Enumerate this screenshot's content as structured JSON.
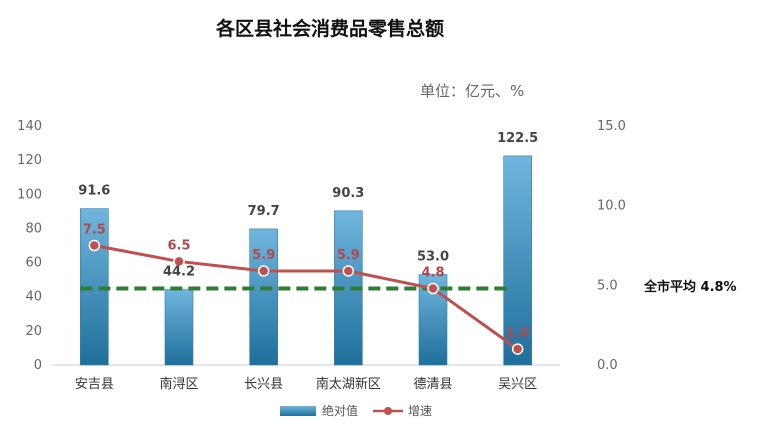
{
  "chart_data": {
    "type": "bar",
    "title": "各区县社会消费品零售总额",
    "unit_label": "单位：亿元、%",
    "categories": [
      "安吉县",
      "南浔区",
      "长兴县",
      "南太湖新区",
      "德清县",
      "吴兴区"
    ],
    "series": [
      {
        "name": "绝对值",
        "type": "bar",
        "axis": "left",
        "values": [
          91.6,
          44.2,
          79.7,
          90.3,
          53.0,
          122.5
        ],
        "color": "#4a9cc8"
      },
      {
        "name": "增速",
        "type": "line",
        "axis": "right",
        "values": [
          7.5,
          6.5,
          5.9,
          5.9,
          4.8,
          1.0
        ],
        "color": "#c0504d"
      }
    ],
    "value_labels": [
      "91.6",
      "44.2",
      "79.7",
      "90.3",
      "53.0",
      "122.5"
    ],
    "rate_labels": [
      "7.5",
      "6.5",
      "5.9",
      "5.9",
      "4.8",
      "1.0"
    ],
    "ylim_left": [
      0,
      140
    ],
    "yticks_left": [
      "0",
      "20",
      "40",
      "60",
      "80",
      "100",
      "120",
      "140"
    ],
    "ylim_right": [
      0,
      15
    ],
    "yticks_right": [
      "0.0",
      "5.0",
      "10.0",
      "15.0"
    ],
    "reference_line": {
      "label": "全市平均 4.8%",
      "value": 4.8,
      "axis": "right",
      "color": "#2e7d32"
    },
    "legend_position": "bottom",
    "grid": false
  }
}
